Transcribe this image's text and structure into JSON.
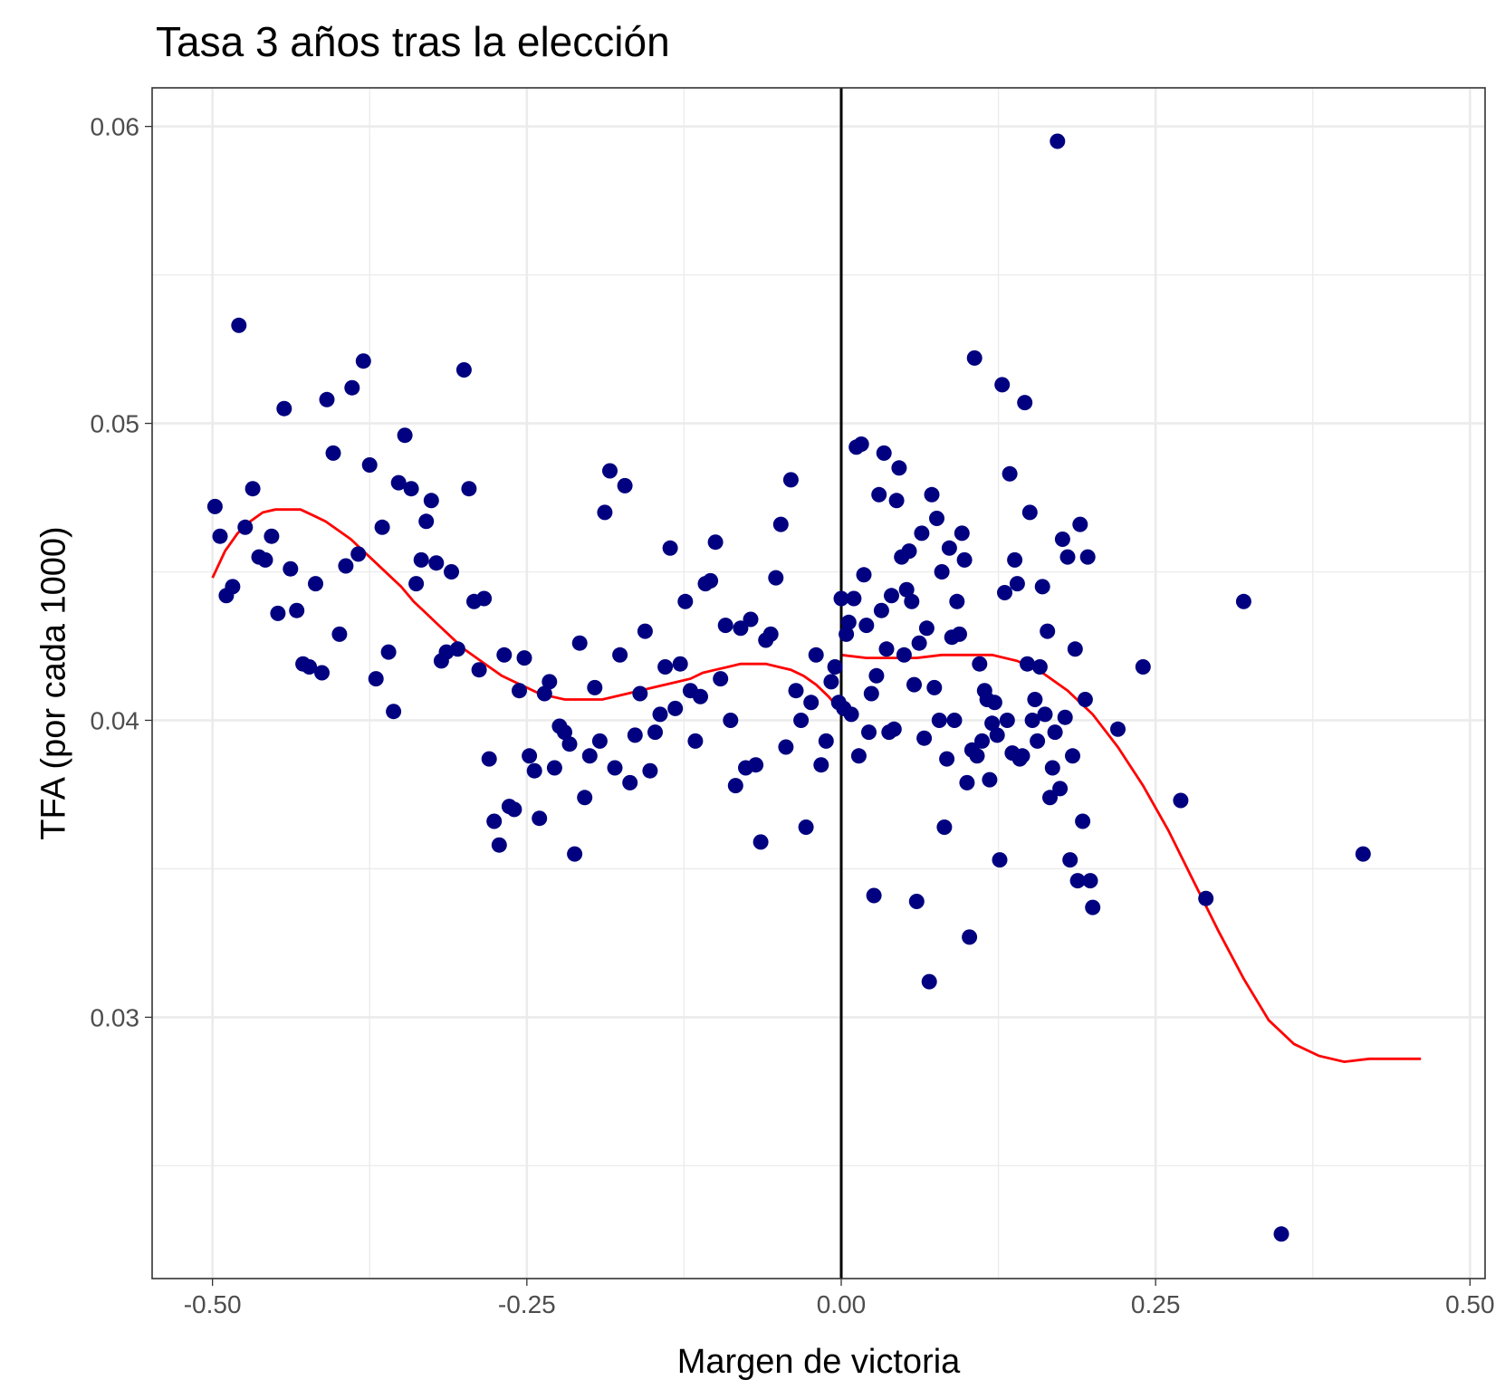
{
  "chart_data": {
    "type": "scatter",
    "title": "Tasa 3 años tras la elección",
    "xlabel": "Margen de victoria",
    "ylabel": "TFA (por cada 1000)",
    "xlim": [
      -0.548,
      0.512
    ],
    "ylim": [
      0.0212,
      0.0613
    ],
    "x_ticks": [
      -0.5,
      -0.25,
      0.0,
      0.25,
      0.5
    ],
    "x_tick_labels": [
      "-0.50",
      "-0.25",
      "0.00",
      "0.25",
      "0.50"
    ],
    "y_ticks": [
      0.03,
      0.04,
      0.05,
      0.06
    ],
    "y_tick_labels": [
      "0.03",
      "0.04",
      "0.05",
      "0.06"
    ],
    "grid": true,
    "cutoff_line": {
      "x": 0.0,
      "color": "#000000"
    },
    "point_color": "#000080",
    "fit_color": "#ff0000",
    "points": [
      [
        -0.498,
        0.0472
      ],
      [
        -0.494,
        0.0462
      ],
      [
        -0.489,
        0.0442
      ],
      [
        -0.484,
        0.0445
      ],
      [
        -0.479,
        0.0533
      ],
      [
        -0.474,
        0.0465
      ],
      [
        -0.468,
        0.0478
      ],
      [
        -0.463,
        0.0455
      ],
      [
        -0.458,
        0.0454
      ],
      [
        -0.453,
        0.0462
      ],
      [
        -0.448,
        0.0436
      ],
      [
        -0.443,
        0.0505
      ],
      [
        -0.438,
        0.0451
      ],
      [
        -0.433,
        0.0437
      ],
      [
        -0.428,
        0.0419
      ],
      [
        -0.423,
        0.0418
      ],
      [
        -0.418,
        0.0446
      ],
      [
        -0.413,
        0.0416
      ],
      [
        -0.409,
        0.0508
      ],
      [
        -0.404,
        0.049
      ],
      [
        -0.399,
        0.0429
      ],
      [
        -0.394,
        0.0452
      ],
      [
        -0.389,
        0.0512
      ],
      [
        -0.384,
        0.0456
      ],
      [
        -0.38,
        0.0521
      ],
      [
        -0.375,
        0.0486
      ],
      [
        -0.37,
        0.0414
      ],
      [
        -0.365,
        0.0465
      ],
      [
        -0.36,
        0.0423
      ],
      [
        -0.356,
        0.0403
      ],
      [
        -0.352,
        0.048
      ],
      [
        -0.347,
        0.0496
      ],
      [
        -0.342,
        0.0478
      ],
      [
        -0.338,
        0.0446
      ],
      [
        -0.334,
        0.0454
      ],
      [
        -0.33,
        0.0467
      ],
      [
        -0.326,
        0.0474
      ],
      [
        -0.322,
        0.0453
      ],
      [
        -0.318,
        0.042
      ],
      [
        -0.314,
        0.0423
      ],
      [
        -0.31,
        0.045
      ],
      [
        -0.305,
        0.0424
      ],
      [
        -0.3,
        0.0518
      ],
      [
        -0.296,
        0.0478
      ],
      [
        -0.292,
        0.044
      ],
      [
        -0.288,
        0.0417
      ],
      [
        -0.284,
        0.0441
      ],
      [
        -0.28,
        0.0387
      ],
      [
        -0.276,
        0.0366
      ],
      [
        -0.272,
        0.0358
      ],
      [
        -0.268,
        0.0422
      ],
      [
        -0.264,
        0.0371
      ],
      [
        -0.26,
        0.037
      ],
      [
        -0.256,
        0.041
      ],
      [
        -0.252,
        0.0421
      ],
      [
        -0.248,
        0.0388
      ],
      [
        -0.244,
        0.0383
      ],
      [
        -0.24,
        0.0367
      ],
      [
        -0.236,
        0.0409
      ],
      [
        -0.232,
        0.0413
      ],
      [
        -0.228,
        0.0384
      ],
      [
        -0.224,
        0.0398
      ],
      [
        -0.22,
        0.0396
      ],
      [
        -0.216,
        0.0392
      ],
      [
        -0.212,
        0.0355
      ],
      [
        -0.208,
        0.0426
      ],
      [
        -0.204,
        0.0374
      ],
      [
        -0.2,
        0.0388
      ],
      [
        -0.196,
        0.0411
      ],
      [
        -0.192,
        0.0393
      ],
      [
        -0.188,
        0.047
      ],
      [
        -0.184,
        0.0484
      ],
      [
        -0.18,
        0.0384
      ],
      [
        -0.176,
        0.0422
      ],
      [
        -0.172,
        0.0479
      ],
      [
        -0.168,
        0.0379
      ],
      [
        -0.164,
        0.0395
      ],
      [
        -0.16,
        0.0409
      ],
      [
        -0.156,
        0.043
      ],
      [
        -0.152,
        0.0383
      ],
      [
        -0.148,
        0.0396
      ],
      [
        -0.144,
        0.0402
      ],
      [
        -0.14,
        0.0418
      ],
      [
        -0.136,
        0.0458
      ],
      [
        -0.132,
        0.0404
      ],
      [
        -0.128,
        0.0419
      ],
      [
        -0.124,
        0.044
      ],
      [
        -0.12,
        0.041
      ],
      [
        -0.116,
        0.0393
      ],
      [
        -0.112,
        0.0408
      ],
      [
        -0.108,
        0.0446
      ],
      [
        -0.104,
        0.0447
      ],
      [
        -0.1,
        0.046
      ],
      [
        -0.096,
        0.0414
      ],
      [
        -0.092,
        0.0432
      ],
      [
        -0.088,
        0.04
      ],
      [
        -0.084,
        0.0378
      ],
      [
        -0.08,
        0.0431
      ],
      [
        -0.076,
        0.0384
      ],
      [
        -0.072,
        0.0434
      ],
      [
        -0.068,
        0.0385
      ],
      [
        -0.064,
        0.0359
      ],
      [
        -0.06,
        0.0427
      ],
      [
        -0.056,
        0.0429
      ],
      [
        -0.052,
        0.0448
      ],
      [
        -0.048,
        0.0466
      ],
      [
        -0.044,
        0.0391
      ],
      [
        -0.04,
        0.0481
      ],
      [
        -0.036,
        0.041
      ],
      [
        -0.032,
        0.04
      ],
      [
        -0.028,
        0.0364
      ],
      [
        -0.024,
        0.0406
      ],
      [
        -0.02,
        0.0422
      ],
      [
        -0.016,
        0.0385
      ],
      [
        -0.012,
        0.0393
      ],
      [
        -0.008,
        0.0413
      ],
      [
        -0.005,
        0.0418
      ],
      [
        -0.002,
        0.0406
      ],
      [
        0.0,
        0.0441
      ],
      [
        0.002,
        0.0404
      ],
      [
        0.004,
        0.0429
      ],
      [
        0.006,
        0.0433
      ],
      [
        0.008,
        0.0402
      ],
      [
        0.01,
        0.0441
      ],
      [
        0.012,
        0.0492
      ],
      [
        0.014,
        0.0388
      ],
      [
        0.016,
        0.0493
      ],
      [
        0.018,
        0.0449
      ],
      [
        0.02,
        0.0432
      ],
      [
        0.022,
        0.0396
      ],
      [
        0.024,
        0.0409
      ],
      [
        0.026,
        0.0341
      ],
      [
        0.028,
        0.0415
      ],
      [
        0.03,
        0.0476
      ],
      [
        0.032,
        0.0437
      ],
      [
        0.034,
        0.049
      ],
      [
        0.036,
        0.0424
      ],
      [
        0.038,
        0.0396
      ],
      [
        0.04,
        0.0442
      ],
      [
        0.042,
        0.0397
      ],
      [
        0.044,
        0.0474
      ],
      [
        0.046,
        0.0485
      ],
      [
        0.048,
        0.0455
      ],
      [
        0.05,
        0.0422
      ],
      [
        0.052,
        0.0444
      ],
      [
        0.054,
        0.0457
      ],
      [
        0.056,
        0.044
      ],
      [
        0.058,
        0.0412
      ],
      [
        0.06,
        0.0339
      ],
      [
        0.062,
        0.0426
      ],
      [
        0.064,
        0.0463
      ],
      [
        0.066,
        0.0394
      ],
      [
        0.068,
        0.0431
      ],
      [
        0.07,
        0.0312
      ],
      [
        0.072,
        0.0476
      ],
      [
        0.074,
        0.0411
      ],
      [
        0.076,
        0.0468
      ],
      [
        0.078,
        0.04
      ],
      [
        0.08,
        0.045
      ],
      [
        0.082,
        0.0364
      ],
      [
        0.084,
        0.0387
      ],
      [
        0.086,
        0.0458
      ],
      [
        0.088,
        0.0428
      ],
      [
        0.09,
        0.04
      ],
      [
        0.092,
        0.044
      ],
      [
        0.094,
        0.0429
      ],
      [
        0.096,
        0.0463
      ],
      [
        0.098,
        0.0454
      ],
      [
        0.1,
        0.0379
      ],
      [
        0.102,
        0.0327
      ],
      [
        0.104,
        0.039
      ],
      [
        0.106,
        0.0522
      ],
      [
        0.108,
        0.0388
      ],
      [
        0.11,
        0.0419
      ],
      [
        0.112,
        0.0393
      ],
      [
        0.114,
        0.041
      ],
      [
        0.116,
        0.0407
      ],
      [
        0.118,
        0.038
      ],
      [
        0.12,
        0.0399
      ],
      [
        0.122,
        0.0406
      ],
      [
        0.124,
        0.0395
      ],
      [
        0.126,
        0.0353
      ],
      [
        0.128,
        0.0513
      ],
      [
        0.13,
        0.0443
      ],
      [
        0.132,
        0.04
      ],
      [
        0.134,
        0.0483
      ],
      [
        0.136,
        0.0389
      ],
      [
        0.138,
        0.0454
      ],
      [
        0.14,
        0.0446
      ],
      [
        0.142,
        0.0387
      ],
      [
        0.144,
        0.0388
      ],
      [
        0.146,
        0.0507
      ],
      [
        0.148,
        0.0419
      ],
      [
        0.15,
        0.047
      ],
      [
        0.152,
        0.04
      ],
      [
        0.154,
        0.0407
      ],
      [
        0.156,
        0.0393
      ],
      [
        0.158,
        0.0418
      ],
      [
        0.16,
        0.0445
      ],
      [
        0.162,
        0.0402
      ],
      [
        0.164,
        0.043
      ],
      [
        0.166,
        0.0374
      ],
      [
        0.168,
        0.0384
      ],
      [
        0.17,
        0.0396
      ],
      [
        0.172,
        0.0595
      ],
      [
        0.174,
        0.0377
      ],
      [
        0.176,
        0.0461
      ],
      [
        0.178,
        0.0401
      ],
      [
        0.18,
        0.0455
      ],
      [
        0.182,
        0.0353
      ],
      [
        0.184,
        0.0388
      ],
      [
        0.186,
        0.0424
      ],
      [
        0.188,
        0.0346
      ],
      [
        0.19,
        0.0466
      ],
      [
        0.192,
        0.0366
      ],
      [
        0.194,
        0.0407
      ],
      [
        0.196,
        0.0455
      ],
      [
        0.198,
        0.0346
      ],
      [
        0.2,
        0.0337
      ],
      [
        0.22,
        0.0397
      ],
      [
        0.24,
        0.0418
      ],
      [
        0.27,
        0.0373
      ],
      [
        0.29,
        0.034
      ],
      [
        0.32,
        0.044
      ],
      [
        0.35,
        0.0227
      ],
      [
        0.415,
        0.0355
      ]
    ],
    "fit_left": [
      [
        -0.5,
        0.0448
      ],
      [
        -0.49,
        0.0457
      ],
      [
        -0.48,
        0.0463
      ],
      [
        -0.47,
        0.0467
      ],
      [
        -0.46,
        0.047
      ],
      [
        -0.45,
        0.0471
      ],
      [
        -0.44,
        0.0471
      ],
      [
        -0.43,
        0.0471
      ],
      [
        -0.42,
        0.0469
      ],
      [
        -0.41,
        0.0467
      ],
      [
        -0.4,
        0.0464
      ],
      [
        -0.39,
        0.0461
      ],
      [
        -0.38,
        0.0457
      ],
      [
        -0.37,
        0.0453
      ],
      [
        -0.36,
        0.0449
      ],
      [
        -0.35,
        0.0445
      ],
      [
        -0.34,
        0.044
      ],
      [
        -0.33,
        0.0436
      ],
      [
        -0.32,
        0.0432
      ],
      [
        -0.31,
        0.0428
      ],
      [
        -0.3,
        0.0424
      ],
      [
        -0.29,
        0.0421
      ],
      [
        -0.28,
        0.0418
      ],
      [
        -0.27,
        0.0415
      ],
      [
        -0.26,
        0.0413
      ],
      [
        -0.25,
        0.0411
      ],
      [
        -0.24,
        0.0409
      ],
      [
        -0.23,
        0.0408
      ],
      [
        -0.22,
        0.0407
      ],
      [
        -0.21,
        0.0407
      ],
      [
        -0.2,
        0.0407
      ],
      [
        -0.19,
        0.0407
      ],
      [
        -0.18,
        0.0408
      ],
      [
        -0.17,
        0.0409
      ],
      [
        -0.16,
        0.041
      ],
      [
        -0.15,
        0.0411
      ],
      [
        -0.14,
        0.0412
      ],
      [
        -0.13,
        0.0413
      ],
      [
        -0.12,
        0.0414
      ],
      [
        -0.11,
        0.0416
      ],
      [
        -0.1,
        0.0417
      ],
      [
        -0.09,
        0.0418
      ],
      [
        -0.08,
        0.0419
      ],
      [
        -0.07,
        0.0419
      ],
      [
        -0.06,
        0.0419
      ],
      [
        -0.05,
        0.0418
      ],
      [
        -0.04,
        0.0417
      ],
      [
        -0.03,
        0.0415
      ],
      [
        -0.02,
        0.0412
      ],
      [
        -0.01,
        0.0408
      ],
      [
        0.0,
        0.0403
      ]
    ],
    "fit_right": [
      [
        0.0,
        0.0422
      ],
      [
        0.02,
        0.0421
      ],
      [
        0.04,
        0.0421
      ],
      [
        0.06,
        0.0421
      ],
      [
        0.08,
        0.0422
      ],
      [
        0.1,
        0.0422
      ],
      [
        0.12,
        0.0422
      ],
      [
        0.14,
        0.042
      ],
      [
        0.16,
        0.0416
      ],
      [
        0.18,
        0.041
      ],
      [
        0.2,
        0.0402
      ],
      [
        0.22,
        0.0391
      ],
      [
        0.24,
        0.0378
      ],
      [
        0.26,
        0.0363
      ],
      [
        0.28,
        0.0346
      ],
      [
        0.3,
        0.0329
      ],
      [
        0.32,
        0.0313
      ],
      [
        0.34,
        0.0299
      ],
      [
        0.36,
        0.0291
      ],
      [
        0.38,
        0.0287
      ],
      [
        0.4,
        0.0285
      ],
      [
        0.42,
        0.0286
      ],
      [
        0.44,
        0.0286
      ],
      [
        0.461,
        0.0286
      ]
    ]
  }
}
